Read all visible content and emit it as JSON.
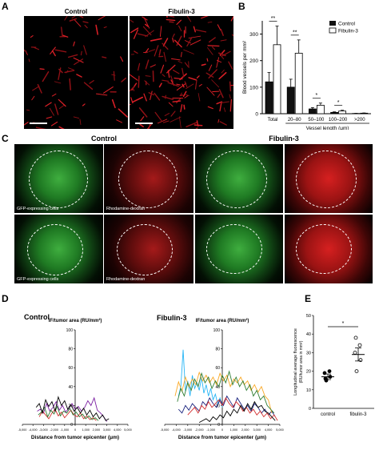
{
  "panelA": {
    "letter": "A",
    "control": "Control",
    "fibulin": "Fibulin-3"
  },
  "panelB": {
    "letter": "B",
    "legend_control": "Control",
    "legend_fibulin": "Fibulin-3",
    "ylabel": "Blood vessels per mm²",
    "xlabel": "Vessel length (μm)",
    "categories": [
      "Total",
      "20–80",
      "50–100",
      "100–200",
      ">200"
    ],
    "yticks": [
      "0",
      "100",
      "200",
      "300"
    ],
    "sig": [
      "**",
      "**",
      "*",
      "*"
    ]
  },
  "panelC": {
    "letter": "C",
    "control": "Control",
    "fibulin": "Fibulin-3",
    "gfp_caption": "GFP-expressing cells",
    "rhod_caption": "Rhodamine-dextran"
  },
  "panelD": {
    "letter": "D",
    "left_title": "Control",
    "right_title": "Fibulin-3",
    "ylabel": "IF/tumor area (RU/mm²)",
    "xlabel": "Distance from tumor epicenter (μm)",
    "yticks": [
      "0",
      "20",
      "40",
      "60",
      "80",
      "100"
    ],
    "xticks": [
      "-5,000",
      "-4,000",
      "-3,000",
      "-2,000",
      "-1,000",
      "0",
      "1,000",
      "2,000",
      "3,000",
      "4,000",
      "5,000"
    ]
  },
  "panelE": {
    "letter": "E",
    "ylabel": "Longitudinal average fluorescence",
    "ylabel2": "(RU/tumor area in mm²)",
    "categories": [
      "control",
      "fibulin-3"
    ],
    "yticks": [
      "0",
      "10",
      "20",
      "30",
      "40",
      "50"
    ],
    "sig": "*"
  },
  "chart_data": [
    {
      "type": "bar",
      "categories": [
        "Total",
        "20–80",
        "50–100",
        "100–200",
        ">200"
      ],
      "series": [
        {
          "name": "Control",
          "values": [
            120,
            100,
            18,
            5,
            1
          ],
          "errors": [
            35,
            30,
            5,
            2,
            0.5
          ]
        },
        {
          "name": "Fibulin-3",
          "values": [
            260,
            228,
            32,
            10,
            2
          ],
          "errors": [
            70,
            50,
            8,
            3,
            0.8
          ]
        }
      ],
      "ylabel": "Blood vessels per mm²",
      "xlabel": "Vessel length (μm)",
      "ylim": [
        0,
        350
      ],
      "legend": "top-right"
    },
    {
      "type": "line",
      "title": "Control",
      "ylim": [
        0,
        100
      ],
      "xlim": [
        -5000,
        5000
      ],
      "series": [
        {
          "color": "#7b1fa2",
          "x": [
            -3600,
            -3300,
            -3000,
            -2700,
            -2400,
            -2100,
            -1800,
            -1500,
            -1200,
            -900,
            -600,
            -300,
            0,
            300,
            600,
            900,
            1200,
            1500,
            1800,
            2100,
            2400,
            2700,
            3000
          ],
          "y": [
            14,
            16,
            12,
            22,
            14,
            18,
            24,
            15,
            20,
            13,
            17,
            22,
            16,
            19,
            14,
            18,
            25,
            20,
            28,
            15,
            12,
            8,
            3
          ]
        },
        {
          "color": "#d32f2f",
          "x": [
            -3400,
            -3100,
            -2800,
            -2500,
            -2200,
            -1900,
            -1600,
            -1300,
            -1000,
            -700,
            -400,
            -100,
            200,
            500,
            800,
            1100,
            1400,
            1700,
            2000
          ],
          "y": [
            8,
            14,
            10,
            6,
            12,
            16,
            9,
            13,
            7,
            11,
            15,
            10,
            8,
            12,
            6,
            9,
            5,
            7,
            4
          ]
        },
        {
          "color": "#2e7d32",
          "x": [
            -3500,
            -3200,
            -2900,
            -2600,
            -2300,
            -2000,
            -1700,
            -1400,
            -1100,
            -800,
            -500,
            -200,
            100,
            400,
            700,
            1000,
            1300,
            1600,
            1900,
            2200
          ],
          "y": [
            10,
            13,
            18,
            8,
            15,
            11,
            19,
            9,
            14,
            12,
            17,
            10,
            13,
            8,
            11,
            6,
            9,
            5,
            7,
            4
          ]
        },
        {
          "color": "#000000",
          "x": [
            -3700,
            -3400,
            -3100,
            -2800,
            -2500,
            -2200,
            -1900,
            -1600,
            -1300,
            -1000,
            -700,
            -400,
            -100,
            200,
            500,
            800,
            1100,
            1400,
            1700,
            2000,
            2300,
            2600,
            2900,
            3200
          ],
          "y": [
            18,
            22,
            12,
            26,
            19,
            24,
            14,
            29,
            20,
            25,
            16,
            21,
            14,
            18,
            12,
            17,
            10,
            15,
            8,
            12,
            6,
            10,
            4,
            6
          ]
        }
      ]
    },
    {
      "type": "line",
      "title": "Fibulin-3",
      "ylim": [
        0,
        100
      ],
      "xlim": [
        -5000,
        5000
      ],
      "series": [
        {
          "color": "#29b6f6",
          "x": [
            -3800,
            -3600,
            -3400,
            -3200,
            -3000,
            -2800,
            -2600,
            -2400,
            -2200,
            -2000,
            -1800,
            -1600,
            -1400,
            -1200,
            -1000,
            -800,
            -600,
            -400,
            -200,
            0
          ],
          "y": [
            30,
            40,
            79,
            35,
            46,
            30,
            52,
            38,
            44,
            36,
            50,
            33,
            42,
            30,
            38,
            26,
            32,
            22,
            28,
            18
          ]
        },
        {
          "color": "#1a237e",
          "x": [
            -3800,
            -3500,
            -3200,
            -2900,
            -2600,
            -2300,
            -2000,
            -1700,
            -1400,
            -1100,
            -800,
            -500,
            -200,
            100,
            400,
            700,
            1000,
            1300,
            1600,
            1900,
            2200,
            2500,
            2800,
            3100,
            3400,
            3700,
            4000,
            4300,
            4600
          ],
          "y": [
            16,
            12,
            20,
            15,
            22,
            18,
            14,
            24,
            20,
            28,
            22,
            18,
            26,
            20,
            30,
            24,
            18,
            28,
            22,
            16,
            20,
            14,
            22,
            18,
            12,
            16,
            10,
            14,
            8
          ]
        },
        {
          "color": "#f9a825",
          "x": [
            -4100,
            -3800,
            -3500,
            -3200,
            -2900,
            -2600,
            -2300,
            -2000,
            -1700,
            -1400,
            -1100,
            -800,
            -500,
            -200,
            100,
            400,
            700,
            1000,
            1300,
            1600,
            1900,
            2200,
            2500,
            2800,
            3100,
            3400,
            3700,
            4000,
            4300
          ],
          "y": [
            30,
            45,
            35,
            50,
            40,
            48,
            42,
            55,
            46,
            52,
            44,
            50,
            42,
            54,
            46,
            52,
            40,
            48,
            44,
            50,
            42,
            46,
            36,
            42,
            34,
            40,
            30,
            26,
            12
          ]
        },
        {
          "color": "#2e7d32",
          "x": [
            -3900,
            -3600,
            -3300,
            -3000,
            -2700,
            -2400,
            -2100,
            -1800,
            -1500,
            -1200,
            -900,
            -600,
            -300,
            0,
            300,
            600,
            900,
            1200,
            1500,
            1800,
            2100,
            2400,
            2700,
            3000,
            3300,
            3600,
            3900,
            4200,
            4500
          ],
          "y": [
            24,
            38,
            30,
            44,
            36,
            48,
            40,
            54,
            44,
            50,
            38,
            46,
            40,
            52,
            44,
            56,
            42,
            50,
            40,
            46,
            36,
            42,
            30,
            36,
            26,
            30,
            20,
            16,
            12
          ]
        },
        {
          "color": "#d32f2f",
          "x": [
            -3000,
            -2700,
            -2400,
            -2100,
            -1800,
            -1500,
            -1200,
            -900,
            -600,
            -300,
            0,
            300,
            600,
            900,
            1200,
            1500,
            1800,
            2100,
            2400,
            2700,
            3000,
            3300,
            3600,
            3900,
            4200,
            4500,
            4800
          ],
          "y": [
            10,
            14,
            18,
            12,
            20,
            16,
            24,
            18,
            22,
            26,
            20,
            28,
            22,
            18,
            24,
            20,
            14,
            18,
            12,
            16,
            10,
            14,
            8,
            12,
            6,
            10,
            4
          ]
        },
        {
          "color": "#000000",
          "x": [
            -2000,
            -1700,
            -1400,
            -1100,
            -800,
            -500,
            -200,
            100,
            400,
            700,
            1000,
            1300,
            1600,
            1900,
            2200,
            2500,
            2800,
            3100,
            3400,
            3700,
            4000,
            4300,
            4600
          ],
          "y": [
            2,
            4,
            6,
            3,
            8,
            5,
            10,
            7,
            14,
            9,
            16,
            12,
            20,
            14,
            22,
            16,
            24,
            18,
            20,
            14,
            12,
            8,
            4
          ]
        }
      ]
    },
    {
      "type": "scatter",
      "categories": [
        "control",
        "fibulin-3"
      ],
      "series": [
        {
          "name": "control",
          "values": [
            15,
            17,
            19,
            20,
            16
          ],
          "mean": 17,
          "sem": 1.5,
          "marker": "filled"
        },
        {
          "name": "fibulin-3",
          "values": [
            20,
            26,
            30,
            34,
            38
          ],
          "mean": 29,
          "sem": 3.5,
          "marker": "open"
        }
      ],
      "ylabel": "Longitudinal average fluorescence (RU/tumor area in mm²)",
      "ylim": [
        0,
        50
      ]
    }
  ]
}
